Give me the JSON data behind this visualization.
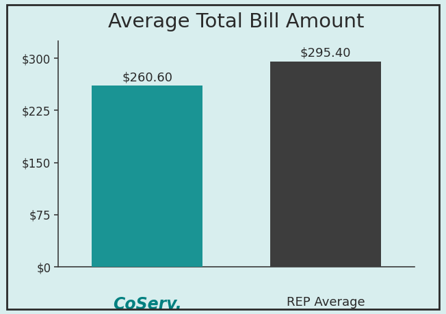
{
  "title": "Average Total Bill Amount",
  "categories": [
    "CoServ.",
    "REP Average"
  ],
  "values": [
    260.6,
    295.4
  ],
  "bar_colors": [
    "#1a9494",
    "#3d3d3d"
  ],
  "bar_labels": [
    "$260.60",
    "$295.40"
  ],
  "background_color": "#d8eeee",
  "border_color": "#2a2a2a",
  "ylim": [
    0,
    325
  ],
  "yticks": [
    0,
    75,
    150,
    225,
    300
  ],
  "ytick_labels": [
    "$0",
    "$75",
    "$150",
    "$225",
    "$300"
  ],
  "title_fontsize": 21,
  "label_fontsize": 13,
  "tick_fontsize": 12,
  "coserv_color": "#008080",
  "coserv_label": "CoServ.",
  "rep_label": "REP Average",
  "bar_width": 0.62,
  "x_positions": [
    0,
    1
  ]
}
